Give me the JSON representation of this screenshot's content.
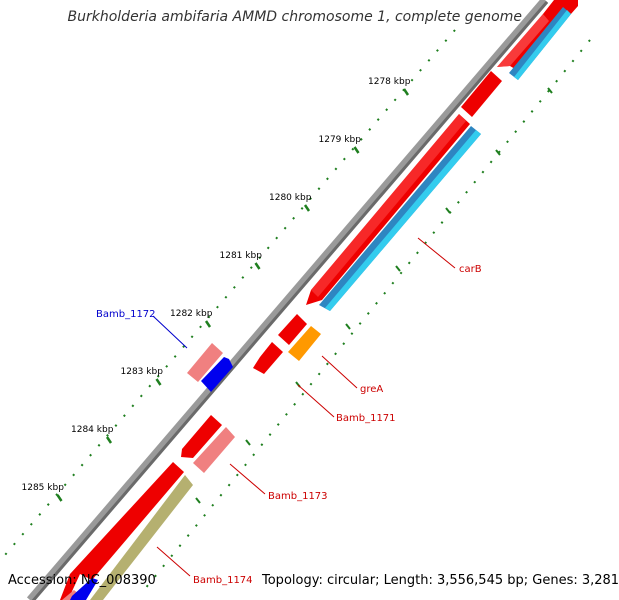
{
  "title": "Burkholderia ambifaria AMMD chromosome 1, complete genome",
  "footer": {
    "accession_label": "Accession:",
    "accession": "NC_008390",
    "topology": "Topology: circular; Length: 3,556,545 bp; Genes: 3,281"
  },
  "colors": {
    "backbone": "#808080",
    "tick": "#1f7f1f",
    "gene_forward": "#ff0000",
    "gene_forward_light": "#f08080",
    "gene_reverse": "#0000ff",
    "cog_blue": "#33ccee",
    "cog_orange": "#ff9900",
    "cog_olive": "#b5b070",
    "label_red": "#cc0000",
    "label_blue": "#0000cc"
  },
  "ruler": {
    "ticks": [
      {
        "label": "1278 kbp"
      },
      {
        "label": "1279 kbp"
      },
      {
        "label": "1280 kbp"
      },
      {
        "label": "1281 kbp"
      },
      {
        "label": "1282 kbp"
      },
      {
        "label": "1283 kbp"
      },
      {
        "label": "1284 kbp"
      },
      {
        "label": "1285 kbp"
      }
    ]
  },
  "genes": [
    {
      "name": "carB",
      "strand": "forward"
    },
    {
      "name": "greA",
      "strand": "forward"
    },
    {
      "name": "Bamb_1171",
      "strand": "forward"
    },
    {
      "name": "Bamb_1172",
      "strand": "reverse"
    },
    {
      "name": "Bamb_1173",
      "strand": "forward"
    },
    {
      "name": "Bamb_1174",
      "strand": "forward"
    }
  ]
}
